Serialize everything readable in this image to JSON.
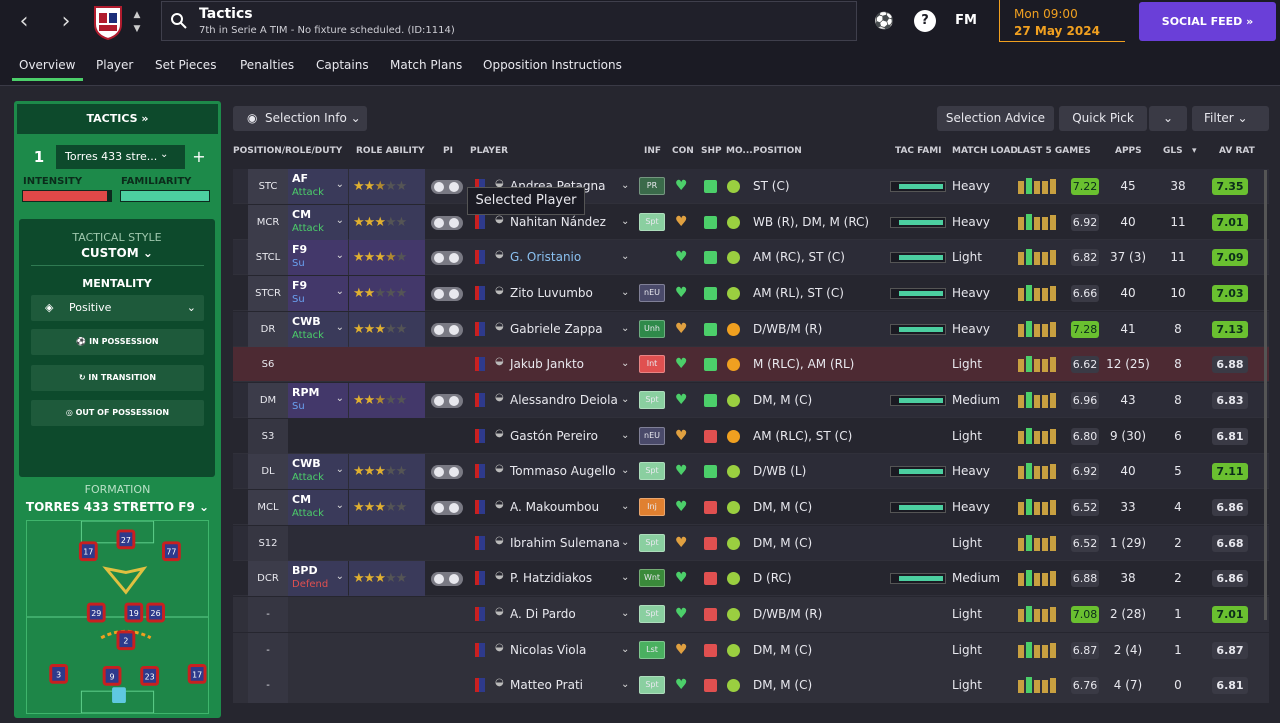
{
  "header": {
    "title": "Tactics",
    "subtitle": "7th in Serie A TIM - No fixture scheduled. (ID:1114)",
    "fm_label": "FM",
    "day_time": "Mon 09:00",
    "date": "27 May 2024",
    "social_label": "SOCIAL FEED"
  },
  "tabs": [
    "Overview",
    "Player",
    "Set Pieces",
    "Penalties",
    "Captains",
    "Match Plans",
    "Opposition Instructions"
  ],
  "left": {
    "tactics_label": "TACTICS",
    "slot_number": "1",
    "tactic_name": "Torres 433 stre...",
    "intensity_label": "INTENSITY",
    "familiarity_label": "FAMILIARITY",
    "intensity_level": 0.95,
    "familiarity_level": 1.0,
    "style_label": "TACTICAL STYLE",
    "style_value": "CUSTOM",
    "mentality_label": "MENTALITY",
    "mentality_value": "Positive",
    "in_possession": "IN POSSESSION",
    "in_transition": "IN TRANSITION",
    "out_possession": "OUT OF POSSESSION",
    "formation_label": "FORMATION",
    "formation_name": "TORRES 433 STRETTO F9"
  },
  "toolbar": {
    "selection_info": "Selection Info",
    "selection_advice": "Selection Advice",
    "quick_pick": "Quick Pick",
    "filter": "Filter"
  },
  "columns": {
    "prd": "POSITION/ROLE/DUTY",
    "role_ability": "ROLE ABILITY",
    "pi": "PI",
    "player": "PLAYER",
    "inf": "INF",
    "con": "CON",
    "shp": "SHP",
    "mo": "MO...",
    "position": "POSITION",
    "tac_fami": "TAC FAMI",
    "match_load": "MATCH LOAD",
    "last5": "LAST 5 GAMES",
    "apps": "APPS",
    "gls": "GLS",
    "avrat": "AV RAT"
  },
  "tooltip": "Selected Player",
  "players": [
    {
      "pos": "STC",
      "role": "AF",
      "duty": "Attack",
      "stars": 2.5,
      "name": "Andrea Petagna",
      "inf": "PR",
      "position": "ST (C)",
      "load": "Heavy",
      "rate": "7.22",
      "apps": "45",
      "gls": "38",
      "avrat": "7.35"
    },
    {
      "pos": "MCR",
      "role": "CM",
      "duty": "Attack",
      "stars": 3,
      "name": "Nahitan Nández",
      "inf": "Spt",
      "position": "WB (R), DM, M (RC)",
      "load": "Heavy",
      "rate": "6.92",
      "apps": "40",
      "gls": "11",
      "avrat": "7.01"
    },
    {
      "pos": "STCL",
      "role": "F9",
      "duty": "Su",
      "stars": 3.5,
      "name": "G. Oristanio",
      "inf": "",
      "position": "AM (RC), ST (C)",
      "load": "Light",
      "rate": "6.82",
      "apps": "37 (3)",
      "gls": "11",
      "avrat": "7.09"
    },
    {
      "pos": "STCR",
      "role": "F9",
      "duty": "Su",
      "stars": 2,
      "name": "Zito Luvumbo",
      "inf": "nEU",
      "position": "AM (RL), ST (C)",
      "load": "Heavy",
      "rate": "6.66",
      "apps": "40",
      "gls": "10",
      "avrat": "7.03"
    },
    {
      "pos": "DR",
      "role": "CWB",
      "duty": "Attack",
      "stars": 3,
      "name": "Gabriele Zappa",
      "inf": "Unh",
      "position": "D/WB/M (R)",
      "load": "Heavy",
      "rate": "7.28",
      "apps": "41",
      "gls": "8",
      "avrat": "7.13"
    },
    {
      "pos": "S6",
      "role": "",
      "duty": "",
      "stars": 0,
      "name": "Jakub Jankto",
      "inf": "Int",
      "position": "M (RLC), AM (RL)",
      "load": "Light",
      "rate": "6.62",
      "apps": "12 (25)",
      "gls": "8",
      "avrat": "6.88"
    },
    {
      "pos": "DM",
      "role": "RPM",
      "duty": "Su",
      "stars": 2.5,
      "name": "Alessandro Deiola",
      "inf": "Spt",
      "position": "DM, M (C)",
      "load": "Medium",
      "rate": "6.96",
      "apps": "43",
      "gls": "8",
      "avrat": "6.83"
    },
    {
      "pos": "S3",
      "role": "",
      "duty": "",
      "stars": 0,
      "name": "Gastón Pereiro",
      "inf": "nEU",
      "position": "AM (RLC), ST (C)",
      "load": "Light",
      "rate": "6.80",
      "apps": "9 (30)",
      "gls": "6",
      "avrat": "6.81"
    },
    {
      "pos": "DL",
      "role": "CWB",
      "duty": "Attack",
      "stars": 3,
      "name": "Tommaso Augello",
      "inf": "Spt",
      "position": "D/WB (L)",
      "load": "Heavy",
      "rate": "6.92",
      "apps": "40",
      "gls": "5",
      "avrat": "7.11"
    },
    {
      "pos": "MCL",
      "role": "CM",
      "duty": "Attack",
      "stars": 3,
      "name": "A. Makoumbou",
      "inf": "Inj",
      "position": "DM, M (C)",
      "load": "Heavy",
      "rate": "6.52",
      "apps": "33",
      "gls": "4",
      "avrat": "6.86"
    },
    {
      "pos": "S12",
      "role": "",
      "duty": "",
      "stars": 0,
      "name": "Ibrahim Sulemana",
      "inf": "Spt",
      "position": "DM, M (C)",
      "load": "Light",
      "rate": "6.52",
      "apps": "1 (29)",
      "gls": "2",
      "avrat": "6.68"
    },
    {
      "pos": "DCR",
      "role": "BPD",
      "duty": "Defend",
      "stars": 3,
      "name": "P. Hatzidiakos",
      "inf": "Wnt",
      "position": "D (RC)",
      "load": "Medium",
      "rate": "6.88",
      "apps": "38",
      "gls": "2",
      "avrat": "6.86"
    },
    {
      "pos": "-",
      "role": "",
      "duty": "",
      "stars": 0,
      "name": "A. Di Pardo",
      "inf": "Spt",
      "position": "D/WB/M (R)",
      "load": "Light",
      "rate": "7.08",
      "apps": "2 (28)",
      "gls": "1",
      "avrat": "7.01"
    },
    {
      "pos": "-",
      "role": "",
      "duty": "",
      "stars": 0,
      "name": "Nicolas Viola",
      "inf": "Lst",
      "position": "DM, M (C)",
      "load": "Light",
      "rate": "6.87",
      "apps": "2 (4)",
      "gls": "1",
      "avrat": "6.87"
    },
    {
      "pos": "-",
      "role": "",
      "duty": "",
      "stars": 0,
      "name": "Matteo Prati",
      "inf": "Spt",
      "position": "DM, M (C)",
      "load": "Light",
      "rate": "6.76",
      "apps": "4 (7)",
      "gls": "0",
      "avrat": "6.81"
    }
  ],
  "formation_numbers": [
    "17",
    "27",
    "77",
    "29",
    "19",
    "26",
    "2",
    "3",
    "9",
    "23"
  ]
}
